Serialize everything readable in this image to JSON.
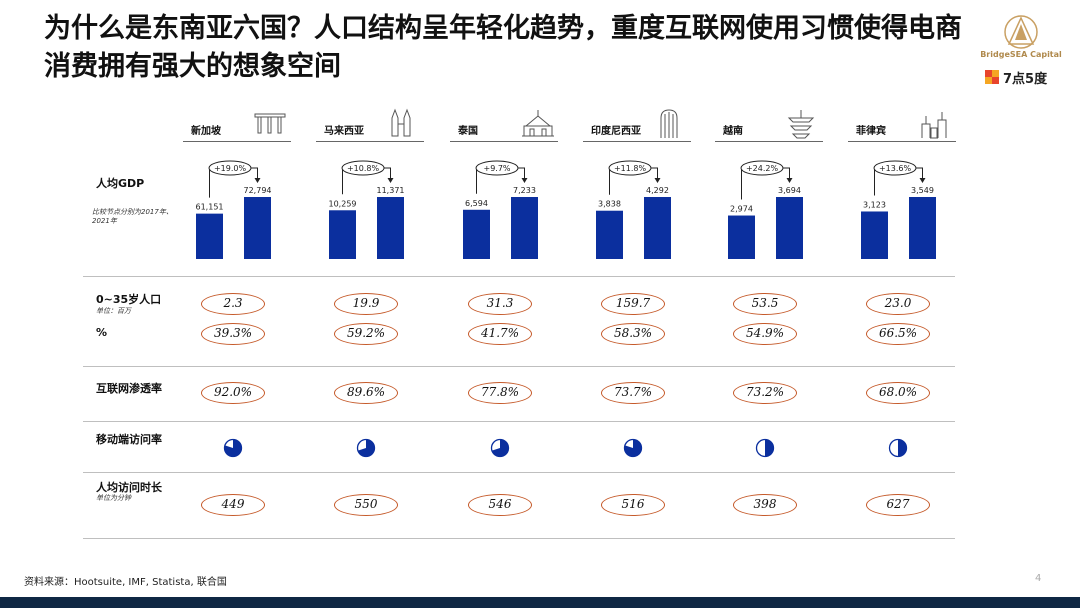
{
  "title": "为什么是东南亚六国？人口结构呈年轻化趋势，重度互联网使用习惯使得电商消费拥有强大的想象空间",
  "logos": {
    "bridgesea": "BridgeSEA Capital",
    "qidian": "7点5度"
  },
  "row_labels": {
    "gdp": "人均GDP",
    "gdp_note": "比较节点分别为2017年、2021年",
    "pop": "0~35岁人口",
    "pop_unit": "单位：百万",
    "pct": "%",
    "internet": "互联网渗透率",
    "mobile": "移动端访问率",
    "time": "人均访问时长",
    "time_unit": "单位为分钟"
  },
  "countries": [
    {
      "name": "新加坡",
      "icon": "singapore-skyline-icon",
      "gdp_2017": "61,151",
      "gdp_2021": "72,794",
      "gdp_2017_v": 61151,
      "gdp_2021_v": 72794,
      "growth": "+19.0%",
      "pop": "2.3",
      "pop_pct": "39.3%",
      "internet": "92.0%",
      "mobile_fraction": 0.8,
      "time": "449"
    },
    {
      "name": "马来西亚",
      "icon": "petronas-towers-icon",
      "gdp_2017": "10,259",
      "gdp_2021": "11,371",
      "gdp_2017_v": 10259,
      "gdp_2021_v": 11371,
      "growth": "+10.8%",
      "pop": "19.9",
      "pop_pct": "59.2%",
      "internet": "89.6%",
      "mobile_fraction": 0.7,
      "time": "550"
    },
    {
      "name": "泰国",
      "icon": "thai-palace-icon",
      "gdp_2017": "6,594",
      "gdp_2021": "7,233",
      "gdp_2017_v": 6594,
      "gdp_2021_v": 7233,
      "growth": "+9.7%",
      "pop": "31.3",
      "pop_pct": "41.7%",
      "internet": "77.8%",
      "mobile_fraction": 0.7,
      "time": "546"
    },
    {
      "name": "印度尼西亚",
      "icon": "jakarta-tower-icon",
      "gdp_2017": "3,838",
      "gdp_2021": "4,292",
      "gdp_2017_v": 3838,
      "gdp_2021_v": 4292,
      "growth": "+11.8%",
      "pop": "159.7",
      "pop_pct": "58.3%",
      "internet": "73.7%",
      "mobile_fraction": 0.8,
      "time": "516"
    },
    {
      "name": "越南",
      "icon": "vietnam-pagoda-icon",
      "gdp_2017": "2,974",
      "gdp_2021": "3,694",
      "gdp_2017_v": 2974,
      "gdp_2021_v": 3694,
      "growth": "+24.2%",
      "pop": "53.5",
      "pop_pct": "54.9%",
      "internet": "73.2%",
      "mobile_fraction": 0.5,
      "time": "398"
    },
    {
      "name": "菲律宾",
      "icon": "manila-church-icon",
      "gdp_2017": "3,123",
      "gdp_2021": "3,549",
      "gdp_2017_v": 3123,
      "gdp_2021_v": 3549,
      "growth": "+13.6%",
      "pop": "23.0",
      "pop_pct": "66.5%",
      "internet": "68.0%",
      "mobile_fraction": 0.5,
      "time": "627"
    }
  ],
  "source": "资料来源：Hootsuite, IMF, Statista, 联合国",
  "page_number": "4",
  "colors": {
    "bar": "#0b2f9e",
    "oval_border": "#c55a2a",
    "pie": "#0b2f9e",
    "bottom_bar": "#0f2744"
  }
}
